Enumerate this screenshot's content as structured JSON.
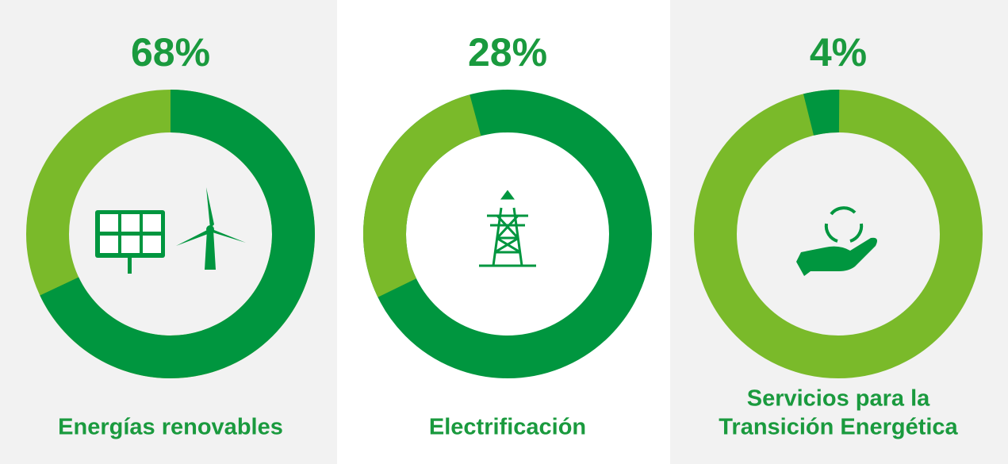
{
  "chart_data": [
    {
      "type": "donut",
      "value": 68,
      "value_label": "68%",
      "label": [
        "Energías renovables"
      ],
      "color": "#00963f",
      "track_color": "#7aba2a",
      "start_angle": 0,
      "background": "#f2f2f2"
    },
    {
      "type": "donut",
      "value": 28,
      "value_label": "28%",
      "label": [
        "Electrificación"
      ],
      "color": "#7aba2a",
      "track_color": "#00963f",
      "start_angle": -116,
      "background": "#ffffff"
    },
    {
      "type": "donut",
      "value": 4,
      "value_label": "4%",
      "label": [
        "Servicios para la",
        "Transición Energética"
      ],
      "color": "#00963f",
      "track_color": "#7aba2a",
      "start_angle": -14,
      "background": "#f2f2f2"
    }
  ]
}
